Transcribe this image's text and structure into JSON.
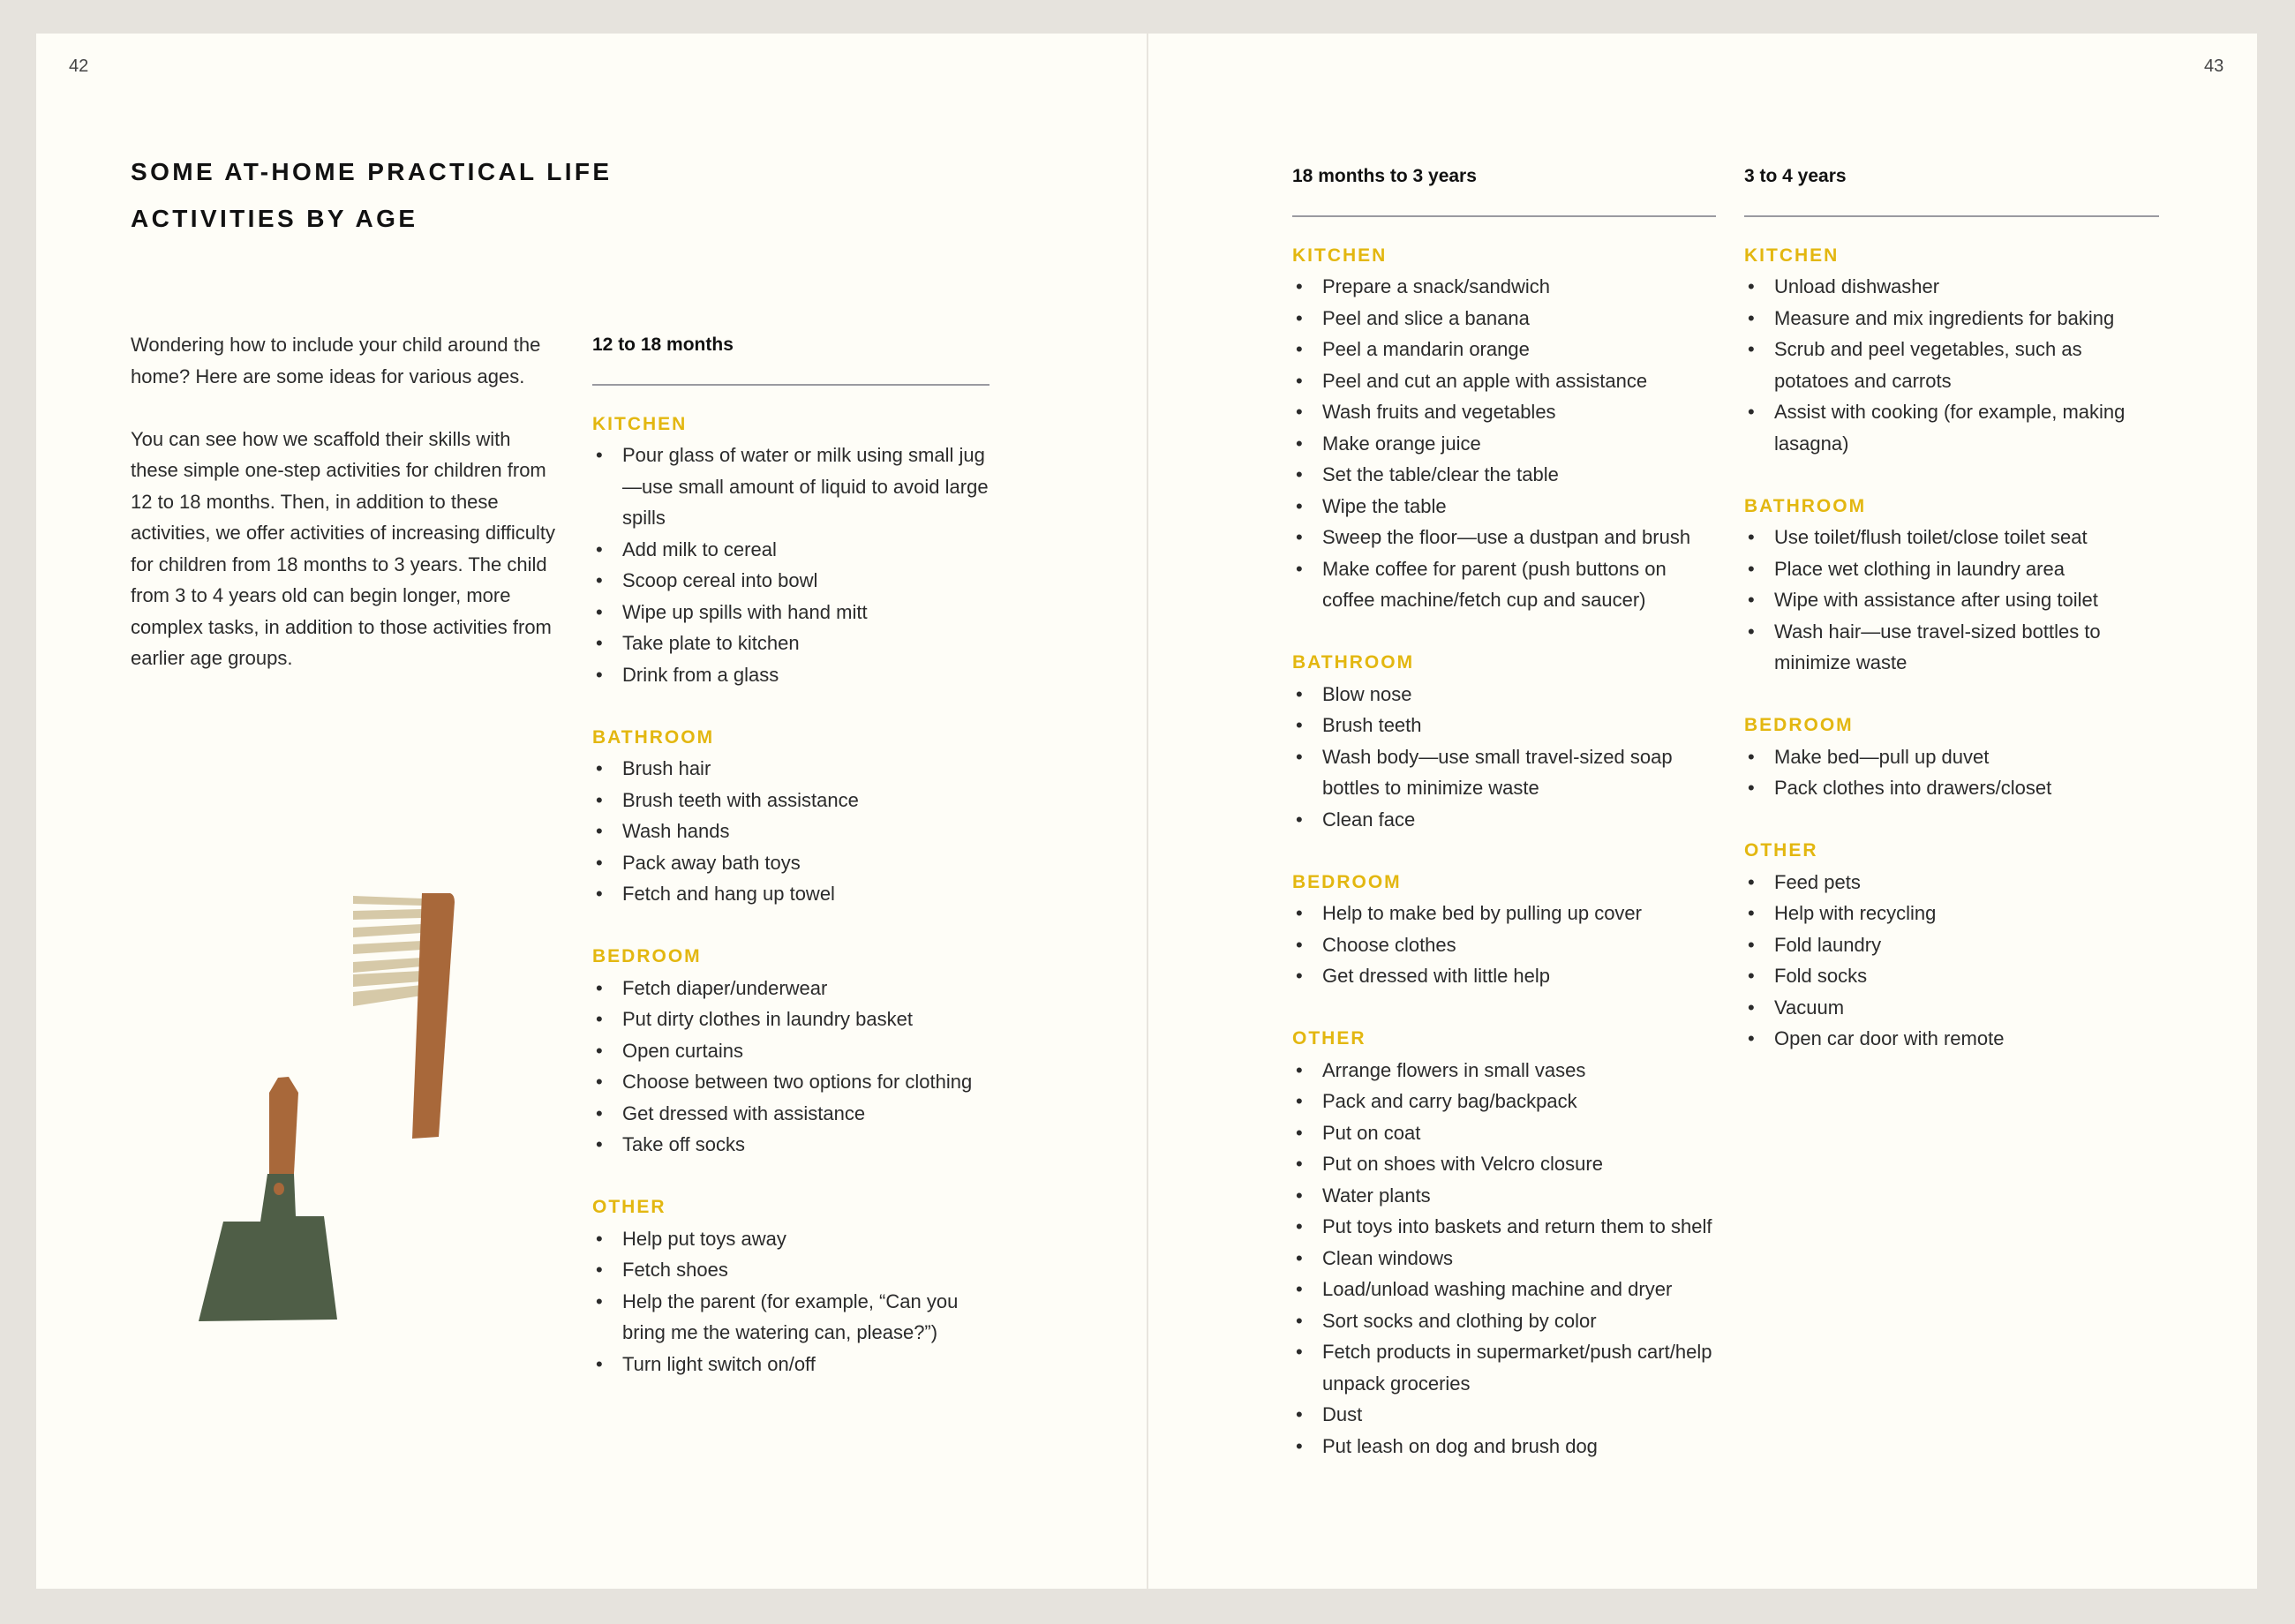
{
  "pages": {
    "left_number": "42",
    "right_number": "43"
  },
  "title": {
    "line1": "SOME AT-HOME PRACTICAL LIFE",
    "line2": "ACTIVITIES BY AGE"
  },
  "intro": [
    "Wondering how to include your child around the home? Here are some ideas for various ages.",
    "You can see how we scaffold their skills with these simple one-step activities for children from 12 to 18 months. Then, in addition to these activities, we offer activities of increasing difficulty for children from 18 months to 3 years. The child from 3 to 4 years old can begin longer, more complex tasks, in addition to those activities from earlier age groups."
  ],
  "colors": {
    "accent": "#e3b710",
    "page": "#fefdf7",
    "background": "#e6e3dd",
    "brush_handle": "#a8683a",
    "bristles": "#d6c9a8",
    "dustpan": "#4f5e47"
  },
  "illustrations": [
    "brush-icon",
    "dustpan-icon"
  ],
  "columns": [
    {
      "header": "12 to 18 months",
      "sections": [
        {
          "title": "KITCHEN",
          "items": [
            "Pour glass of water or milk using small jug—use small amount of liquid to avoid large spills",
            "Add milk to cereal",
            "Scoop cereal into bowl",
            "Wipe up spills with hand mitt",
            "Take plate to kitchen",
            "Drink from a glass"
          ]
        },
        {
          "title": "BATHROOM",
          "items": [
            "Brush hair",
            "Brush teeth with assistance",
            "Wash hands",
            "Pack away bath toys",
            "Fetch and hang up towel"
          ]
        },
        {
          "title": "BEDROOM",
          "items": [
            "Fetch diaper/underwear",
            "Put dirty clothes in laundry basket",
            "Open curtains",
            "Choose between two options for clothing",
            "Get dressed with assistance",
            "Take off socks"
          ]
        },
        {
          "title": "OTHER",
          "items": [
            "Help put toys away",
            "Fetch shoes",
            "Help the parent (for example, “Can you bring me the watering can, please?”)",
            "Turn light switch on/off"
          ]
        }
      ]
    },
    {
      "header": "18 months to 3 years",
      "sections": [
        {
          "title": "KITCHEN",
          "items": [
            "Prepare a snack/sandwich",
            "Peel and slice a banana",
            "Peel a mandarin orange",
            "Peel and cut an apple with assistance",
            "Wash fruits and vegetables",
            "Make orange juice",
            "Set the table/clear the table",
            "Wipe the table",
            "Sweep the floor—use a dustpan and brush",
            "Make coffee for parent (push buttons on coffee machine/fetch cup and saucer)"
          ]
        },
        {
          "title": "BATHROOM",
          "items": [
            "Blow nose",
            "Brush teeth",
            "Wash body—use small travel-sized soap bottles to minimize waste",
            "Clean face"
          ]
        },
        {
          "title": "BEDROOM",
          "items": [
            "Help to make bed by pulling up cover",
            "Choose clothes",
            "Get dressed with little help"
          ]
        },
        {
          "title": "OTHER",
          "items": [
            "Arrange flowers in small vases",
            "Pack and carry bag/backpack",
            "Put on coat",
            "Put on shoes with Velcro closure",
            "Water plants",
            "Put toys into baskets and return them to shelf",
            "Clean windows",
            "Load/unload washing machine and dryer",
            "Sort socks and clothing by color",
            "Fetch products in supermarket/push cart/help unpack groceries",
            "Dust",
            "Put leash on dog and brush dog"
          ]
        }
      ]
    },
    {
      "header": "3 to 4 years",
      "sections": [
        {
          "title": "KITCHEN",
          "items": [
            "Unload dishwasher",
            "Measure and mix ingredients for baking",
            "Scrub and peel vegetables, such as potatoes and carrots",
            "Assist with cooking (for example, making lasagna)"
          ]
        },
        {
          "title": "BATHROOM",
          "items": [
            "Use toilet/flush toilet/close toilet seat",
            "Place wet clothing in laundry area",
            "Wipe with assistance after using toilet",
            "Wash hair—use travel-sized bottles to minimize waste"
          ]
        },
        {
          "title": "BEDROOM",
          "items": [
            "Make bed—pull up duvet",
            "Pack clothes into drawers/closet"
          ]
        },
        {
          "title": "OTHER",
          "items": [
            "Feed pets",
            "Help with recycling",
            "Fold laundry",
            "Fold socks",
            "Vacuum",
            "Open car door with remote"
          ]
        }
      ]
    }
  ]
}
